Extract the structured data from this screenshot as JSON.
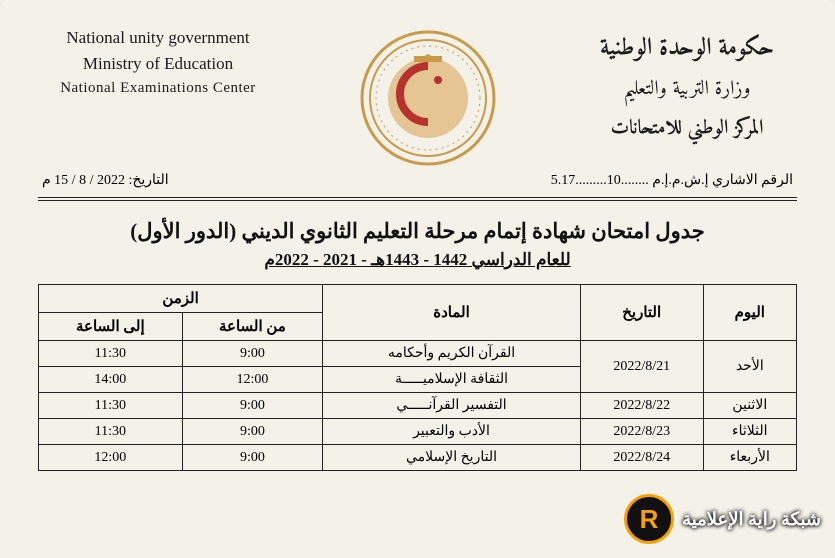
{
  "header": {
    "left": {
      "line1": "National unity government",
      "line2": "Ministry of Education",
      "line3": "National Examinations Center"
    },
    "right": {
      "line1": "حكومة الوحدة الوطنية",
      "line2": "وزارة التربية والتعليم",
      "line3": "المركز الوطني للامتحانات"
    },
    "seal": {
      "ring_color": "#c99a4a",
      "inner_color": "#d9a85a",
      "accent_color": "#b7322c"
    }
  },
  "refline": {
    "right_label": "الرقم الاشاري",
    "right_value": "إ.ش.م.إ.م ........10.........5.17",
    "left_label": "التاريخ:",
    "left_value": "2022 / 8 / 15 م"
  },
  "title": "جدول امتحان شهادة إتمام مرحلة التعليم الثانوي الديني (الدور الأول)",
  "subtitle": "للعام الدراسي 1442 - 1443هـ - 2021 - 2022م",
  "table": {
    "headers": {
      "day": "اليوم",
      "date": "التاريخ",
      "subject": "المادة",
      "time": "الزمن",
      "from": "من الساعة",
      "to": "إلى الساعة"
    },
    "rows": [
      {
        "day": "الأحد",
        "date": "2022/8/21",
        "subject": "القرآن الكريم وأحكامه",
        "from": "9:00",
        "to": "11:30",
        "day_rowspan": 2,
        "date_rowspan": 2
      },
      {
        "subject": "الثقافة الإسلاميـــــة",
        "from": "12:00",
        "to": "14:00"
      },
      {
        "day": "الاثنين",
        "date": "2022/8/22",
        "subject": "التفسير القرآنـــــي",
        "from": "9:00",
        "to": "11:30"
      },
      {
        "day": "الثلاثاء",
        "date": "2022/8/23",
        "subject": "الأدب والتعبير",
        "from": "9:00",
        "to": "11:30"
      },
      {
        "day": "الأربعاء",
        "date": "2022/8/24",
        "subject": "التاريخ الإسلامي",
        "from": "9:00",
        "to": "12:00"
      }
    ]
  },
  "watermark": {
    "text": "شبكة راية الإعلامية",
    "badge_letter": "R"
  }
}
